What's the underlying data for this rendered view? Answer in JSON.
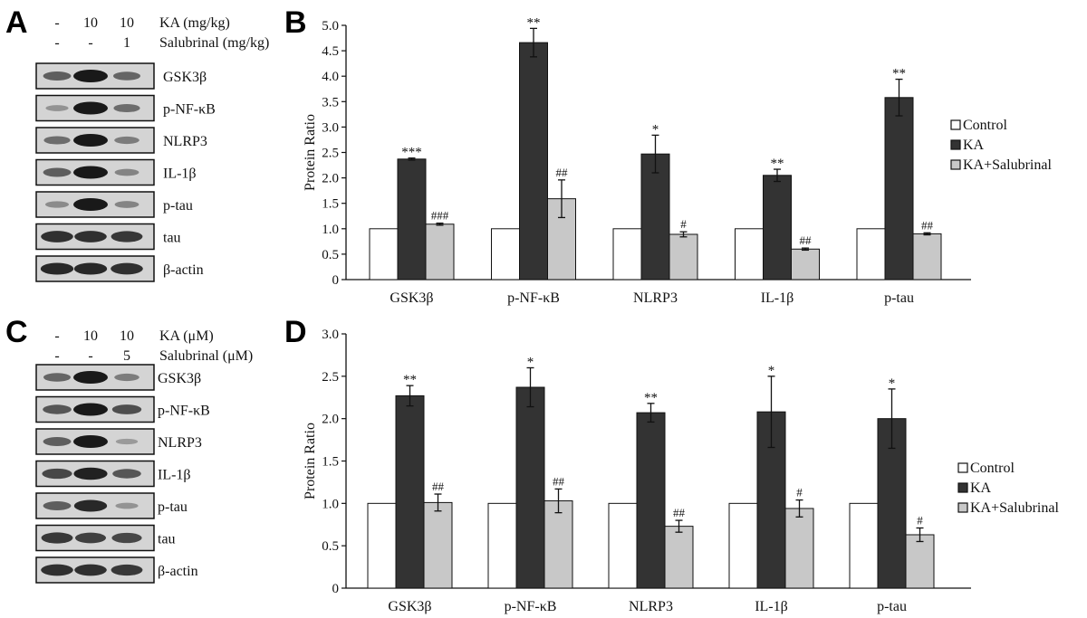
{
  "blot_panels": [
    {
      "letter": "A",
      "treatments": [
        {
          "label": "KA (mg/kg)",
          "values": [
            "-",
            "10",
            "10"
          ]
        },
        {
          "label": "Salubrinal (mg/kg)",
          "values": [
            "-",
            "-",
            "1"
          ]
        }
      ],
      "bands": [
        {
          "label": "GSK3β",
          "intensity": [
            0.55,
            1.0,
            0.5
          ]
        },
        {
          "label": "p-NF-κB",
          "intensity": [
            0.2,
            1.0,
            0.45
          ]
        },
        {
          "label": "NLRP3",
          "intensity": [
            0.45,
            1.0,
            0.35
          ]
        },
        {
          "label": "IL-1β",
          "intensity": [
            0.55,
            1.0,
            0.3
          ]
        },
        {
          "label": "p-tau",
          "intensity": [
            0.25,
            1.0,
            0.3
          ]
        },
        {
          "label": "tau",
          "intensity": [
            0.85,
            0.85,
            0.8
          ]
        },
        {
          "label": "β-actin",
          "intensity": [
            0.9,
            0.9,
            0.85
          ]
        }
      ]
    },
    {
      "letter": "C",
      "treatments": [
        {
          "label": "KA (μM)",
          "values": [
            "-",
            "10",
            "10"
          ]
        },
        {
          "label": "Salubrinal (μM)",
          "values": [
            "-",
            "-",
            "5"
          ]
        }
      ],
      "bands": [
        {
          "label": "GSK3β",
          "intensity": [
            0.5,
            1.0,
            0.35
          ]
        },
        {
          "label": "p-NF-κB",
          "intensity": [
            0.6,
            1.0,
            0.65
          ]
        },
        {
          "label": "NLRP3",
          "intensity": [
            0.55,
            1.0,
            0.15
          ]
        },
        {
          "label": "IL-1β",
          "intensity": [
            0.7,
            0.95,
            0.6
          ]
        },
        {
          "label": "p-tau",
          "intensity": [
            0.55,
            0.9,
            0.2
          ]
        },
        {
          "label": "tau",
          "intensity": [
            0.8,
            0.75,
            0.7
          ]
        },
        {
          "label": "β-actin",
          "intensity": [
            0.85,
            0.85,
            0.8
          ]
        }
      ]
    }
  ],
  "chart_data": [
    {
      "letter": "B",
      "type": "bar",
      "ylabel": "Protein Ratio",
      "ylim": [
        0,
        5.0
      ],
      "yticks": [
        "0",
        "0.5",
        "1.0",
        "1.5",
        "2.0",
        "2.5",
        "3.0",
        "3.5",
        "4.0",
        "4.5",
        "5.0"
      ],
      "categories": [
        "GSK3β",
        "p-NF-κB",
        "NLRP3",
        "IL-1β",
        "p-tau"
      ],
      "series": [
        {
          "name": "Control",
          "color": "#ffffff",
          "values": [
            1.0,
            1.0,
            1.0,
            1.0,
            1.0
          ],
          "errors": [
            0,
            0,
            0,
            0,
            0
          ],
          "marks": [
            "",
            "",
            "",
            "",
            ""
          ]
        },
        {
          "name": "KA",
          "color": "#333333",
          "values": [
            2.37,
            4.66,
            2.47,
            2.05,
            3.58
          ],
          "errors": [
            0.02,
            0.28,
            0.37,
            0.12,
            0.36
          ],
          "marks": [
            "***",
            "**",
            "*",
            "**",
            "**"
          ]
        },
        {
          "name": "KA+Salubrinal",
          "color": "#c8c8c8",
          "values": [
            1.09,
            1.59,
            0.89,
            0.6,
            0.9
          ],
          "errors": [
            0.02,
            0.37,
            0.05,
            0.02,
            0.02
          ],
          "marks": [
            "###",
            "##",
            "#",
            "##",
            "##"
          ]
        }
      ],
      "legend_position": "right"
    },
    {
      "letter": "D",
      "type": "bar",
      "ylabel": "Protein Ratio",
      "ylim": [
        0,
        3.0
      ],
      "yticks": [
        "0",
        "0.5",
        "1.0",
        "1.5",
        "2.0",
        "2.5",
        "3.0"
      ],
      "categories": [
        "GSK3β",
        "p-NF-κB",
        "NLRP3",
        "IL-1β",
        "p-tau"
      ],
      "series": [
        {
          "name": "Control",
          "color": "#ffffff",
          "values": [
            1.0,
            1.0,
            1.0,
            1.0,
            1.0
          ],
          "errors": [
            0,
            0,
            0,
            0,
            0
          ],
          "marks": [
            "",
            "",
            "",
            "",
            ""
          ]
        },
        {
          "name": "KA",
          "color": "#333333",
          "values": [
            2.27,
            2.37,
            2.07,
            2.08,
            2.0
          ],
          "errors": [
            0.12,
            0.23,
            0.11,
            0.42,
            0.35
          ],
          "marks": [
            "**",
            "*",
            "**",
            "*",
            "*"
          ]
        },
        {
          "name": "KA+Salubrinal",
          "color": "#c8c8c8",
          "values": [
            1.01,
            1.03,
            0.73,
            0.94,
            0.63
          ],
          "errors": [
            0.1,
            0.14,
            0.07,
            0.1,
            0.08
          ],
          "marks": [
            "##",
            "##",
            "##",
            "#",
            "#"
          ]
        }
      ],
      "legend_position": "right"
    }
  ]
}
